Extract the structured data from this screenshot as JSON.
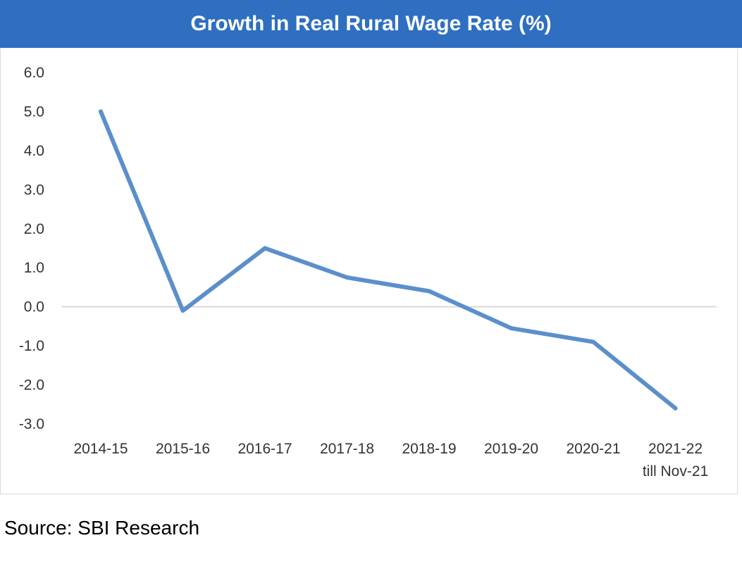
{
  "header": {
    "title": "Growth in Real Rural Wage Rate (%)"
  },
  "footer": {
    "source": "Source: SBI Research"
  },
  "colors": {
    "title_bar": "#2e6fc1",
    "line": "#5b8fcc",
    "zero_line": "#d9d9d9"
  },
  "chart_data": {
    "type": "line",
    "title": "Growth in Real Rural Wage Rate (%)",
    "xlabel": "",
    "ylabel": "",
    "categories": [
      [
        "2014-15"
      ],
      [
        "2015-16"
      ],
      [
        "2016-17"
      ],
      [
        "2017-18"
      ],
      [
        "2018-19"
      ],
      [
        "2019-20"
      ],
      [
        "2020-21"
      ],
      [
        "2021-22",
        "till Nov-21"
      ]
    ],
    "series": [
      {
        "values": [
          5.0,
          -0.1,
          1.5,
          0.75,
          0.4,
          -0.55,
          -0.9,
          -2.6
        ]
      }
    ],
    "ylim": [
      -3.0,
      6.0
    ],
    "yticks": [
      "6.0",
      "5.0",
      "4.0",
      "3.0",
      "2.0",
      "1.0",
      "0.0",
      "-1.0",
      "-2.0",
      "-3.0"
    ],
    "ytick_values": [
      6,
      5,
      4,
      3,
      2,
      1,
      0,
      -1,
      -2,
      -3
    ],
    "grid": false,
    "legend": "none"
  }
}
